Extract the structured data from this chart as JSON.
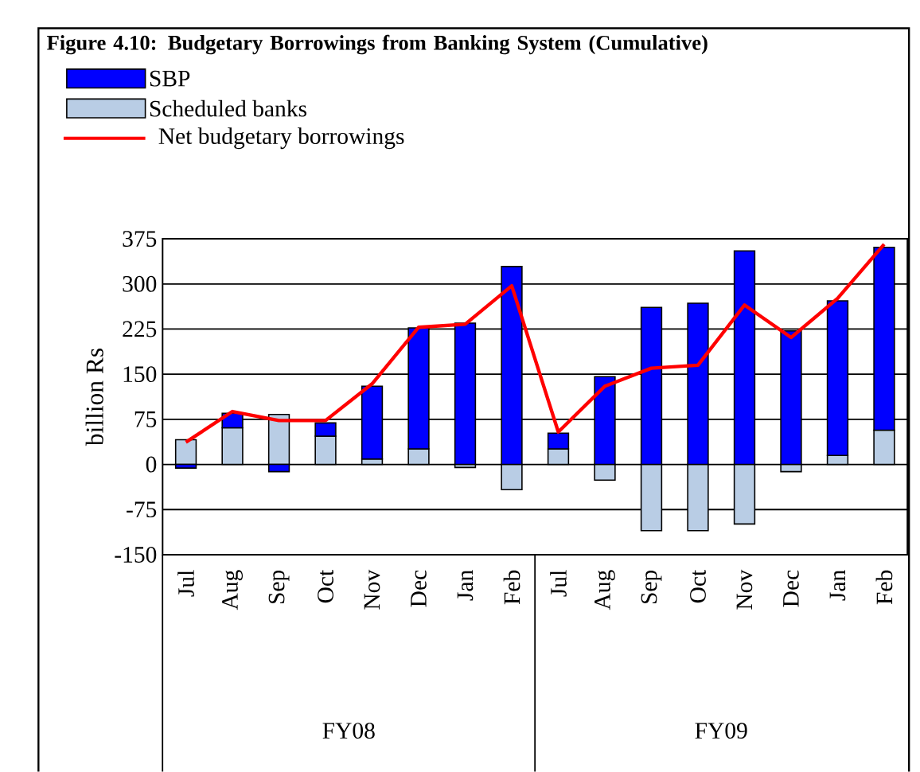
{
  "chart_data": {
    "type": "bar",
    "stacked": true,
    "title": "Figure 4.10: Budgetary Borrowings from Banking System (Cumulative)",
    "ylabel": "billion Rs",
    "categories": [
      "Jul",
      "Aug",
      "Sep",
      "Oct",
      "Nov",
      "Dec",
      "Jan",
      "Feb",
      "Jul",
      "Aug",
      "Sep",
      "Oct",
      "Nov",
      "Dec",
      "Jan",
      "Feb"
    ],
    "series": [
      {
        "name": "Scheduled banks",
        "color": "#b9cde5",
        "values": [
          41,
          61,
          83,
          47,
          9,
          26,
          -5,
          -42,
          26,
          -26,
          -110,
          -110,
          -99,
          -12,
          15,
          57
        ]
      },
      {
        "name": "SBP",
        "color": "#0000ff",
        "values": [
          -6,
          24,
          -12,
          22,
          121,
          201,
          235,
          329,
          26,
          146,
          261,
          268,
          355,
          222,
          257,
          304
        ]
      },
      {
        "name": "Net budgetary borrowings",
        "type": "line",
        "color": "#ff0000",
        "values": [
          37,
          88,
          73,
          73,
          134,
          228,
          233,
          297,
          54,
          130,
          160,
          165,
          265,
          211,
          276,
          366
        ]
      }
    ],
    "ylim": [
      -150,
      375
    ],
    "yticks": [
      -150,
      -75,
      0,
      75,
      150,
      225,
      300,
      375
    ],
    "grid": "y",
    "legend": "top left",
    "marker": "none",
    "line_style": "solid",
    "annotations": [
      "FY08",
      "FY09"
    ]
  }
}
